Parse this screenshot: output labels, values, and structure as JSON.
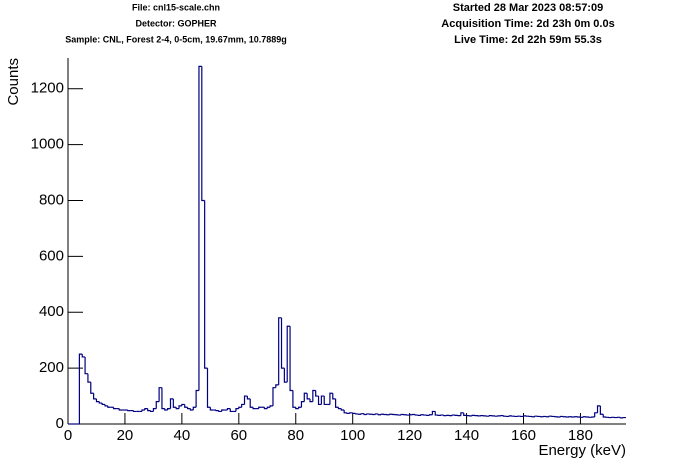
{
  "chart_data": {
    "type": "histogram",
    "header_left": [
      "File: cnl15-scale.chn",
      "Detector: GOPHER",
      "Sample: CNL, Forest 2-4, 0-5cm, 19.67mm, 10.7889g"
    ],
    "header_right": [
      "Started 28 Mar 2023 08:57:09",
      "Acquisition Time: 2d 23h 0m 0.0s",
      "Live Time: 2d 22h 59m 55.3s"
    ],
    "xlabel": "Energy (keV)",
    "ylabel": "Counts",
    "color": "#000080",
    "xlim": [
      0,
      196
    ],
    "ylim": [
      0,
      1310
    ],
    "xticks": [
      0,
      20,
      40,
      60,
      80,
      100,
      120,
      140,
      160,
      180
    ],
    "yticks": [
      0,
      200,
      400,
      600,
      800,
      1000,
      1200
    ],
    "bins": [
      0,
      1,
      2,
      3,
      4,
      5,
      6,
      7,
      8,
      9,
      10,
      11,
      12,
      13,
      14,
      15,
      16,
      17,
      18,
      19,
      20,
      21,
      22,
      23,
      24,
      25,
      26,
      27,
      28,
      29,
      30,
      31,
      32,
      33,
      34,
      35,
      36,
      37,
      38,
      39,
      40,
      41,
      42,
      43,
      44,
      45,
      46,
      47,
      48,
      49,
      50,
      51,
      52,
      53,
      54,
      55,
      56,
      57,
      58,
      59,
      60,
      61,
      62,
      63,
      64,
      65,
      66,
      67,
      68,
      69,
      70,
      71,
      72,
      73,
      74,
      75,
      76,
      77,
      78,
      79,
      80,
      81,
      82,
      83,
      84,
      85,
      86,
      87,
      88,
      89,
      90,
      91,
      92,
      93,
      94,
      95,
      96,
      97,
      98,
      99,
      100,
      101,
      102,
      103,
      104,
      105,
      106,
      107,
      108,
      109,
      110,
      111,
      112,
      113,
      114,
      115,
      116,
      117,
      118,
      119,
      120,
      121,
      122,
      123,
      124,
      125,
      126,
      127,
      128,
      129,
      130,
      131,
      132,
      133,
      134,
      135,
      136,
      137,
      138,
      139,
      140,
      141,
      142,
      143,
      144,
      145,
      146,
      147,
      148,
      149,
      150,
      151,
      152,
      153,
      154,
      155,
      156,
      157,
      158,
      159,
      160,
      161,
      162,
      163,
      164,
      165,
      166,
      167,
      168,
      169,
      170,
      171,
      172,
      173,
      174,
      175,
      176,
      177,
      178,
      179,
      180,
      181,
      182,
      183,
      184,
      185,
      186,
      187,
      188,
      189,
      190,
      191,
      192,
      193,
      194,
      195,
      196
    ],
    "counts": [
      0,
      0,
      0,
      0,
      250,
      240,
      180,
      150,
      110,
      90,
      80,
      75,
      70,
      65,
      60,
      60,
      55,
      55,
      50,
      50,
      50,
      48,
      48,
      45,
      45,
      45,
      50,
      55,
      48,
      45,
      55,
      80,
      130,
      55,
      50,
      55,
      90,
      60,
      55,
      65,
      70,
      60,
      55,
      50,
      60,
      120,
      1280,
      800,
      200,
      60,
      50,
      50,
      48,
      45,
      50,
      50,
      55,
      45,
      45,
      55,
      60,
      70,
      100,
      90,
      60,
      55,
      55,
      60,
      60,
      55,
      60,
      65,
      130,
      140,
      380,
      200,
      150,
      350,
      120,
      60,
      55,
      60,
      80,
      110,
      90,
      80,
      120,
      100,
      70,
      100,
      70,
      70,
      110,
      90,
      60,
      55,
      50,
      40,
      38,
      40,
      38,
      36,
      35,
      37,
      34,
      36,
      35,
      34,
      36,
      33,
      35,
      34,
      33,
      35,
      34,
      33,
      32,
      34,
      33,
      32,
      33,
      34,
      32,
      31,
      33,
      32,
      31,
      33,
      45,
      32,
      31,
      32,
      30,
      31,
      30,
      32,
      31,
      30,
      40,
      31,
      30,
      29,
      31,
      30,
      29,
      30,
      29,
      28,
      30,
      29,
      28,
      29,
      30,
      28,
      27,
      29,
      28,
      27,
      28,
      27,
      29,
      28,
      27,
      26,
      28,
      27,
      26,
      27,
      26,
      28,
      27,
      26,
      25,
      27,
      26,
      25,
      26,
      25,
      26,
      25,
      24,
      26,
      25,
      24,
      25,
      40,
      65,
      35,
      25,
      24,
      23,
      24,
      23,
      24,
      22,
      23
    ]
  }
}
